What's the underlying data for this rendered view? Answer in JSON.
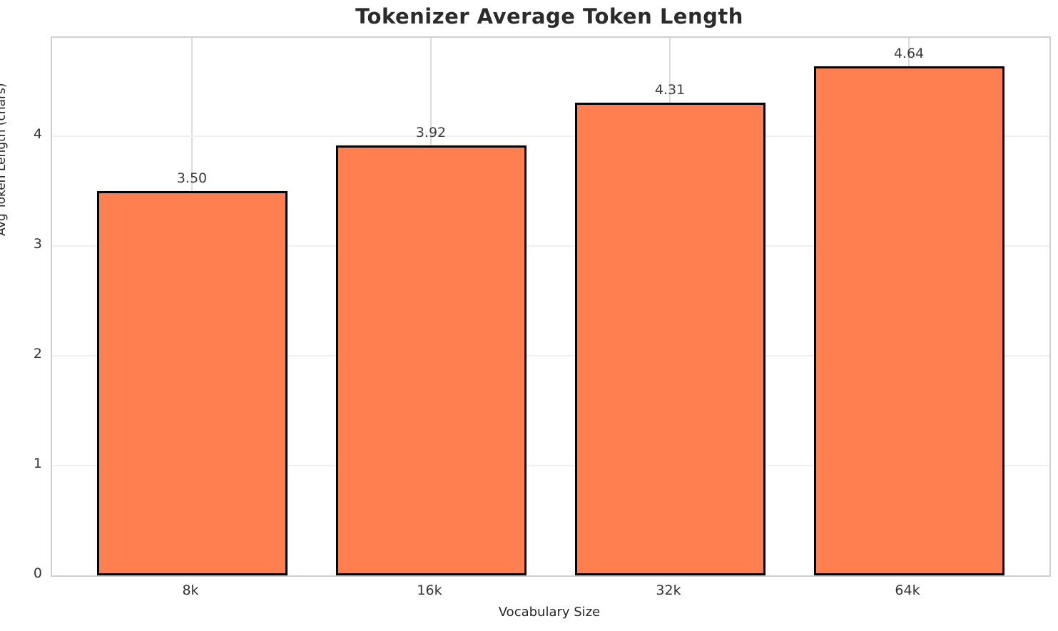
{
  "chart_data": {
    "type": "bar",
    "title": "Tokenizer Average Token Length",
    "xlabel": "Vocabulary Size",
    "ylabel": "Avg Token Length (chars)",
    "categories": [
      "8k",
      "16k",
      "32k",
      "64k"
    ],
    "values": [
      3.5,
      3.92,
      4.31,
      4.64
    ],
    "value_labels": [
      "3.50",
      "3.92",
      "4.31",
      "4.64"
    ],
    "ytick_labels": [
      "0",
      "1",
      "2",
      "3",
      "4"
    ],
    "ytick_values": [
      0,
      1,
      2,
      3,
      4
    ],
    "ylim": [
      0,
      4.9
    ],
    "grid": "both (horizontal faint, vertical at category centers)",
    "legend": "none",
    "colors": {
      "bar_fill": "#FF7F50",
      "bar_edge": "#000000",
      "horizontal_grid": "#f0f0f0",
      "vertical_grid": "#dcdcdc",
      "spine": "#d0d0d0",
      "tick_text": "#333333",
      "title_text": "#2b2b2b"
    }
  }
}
